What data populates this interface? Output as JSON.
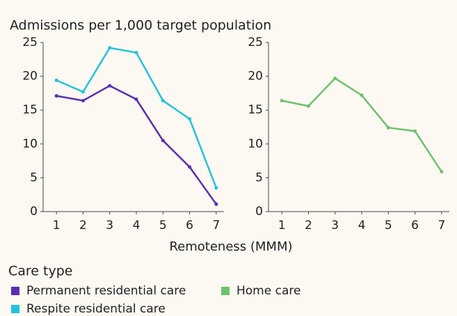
{
  "title": "Admissions per 1,000 target population",
  "xlabel": "Remoteness (MMM)",
  "legend_title": "Care type",
  "chart_data": [
    {
      "type": "line",
      "x": [
        1,
        2,
        3,
        4,
        5,
        6,
        7
      ],
      "xlim": [
        0.5,
        7.5
      ],
      "xticks": [
        1,
        2,
        3,
        4,
        5,
        6,
        7
      ],
      "ylim": [
        0,
        25
      ],
      "yticks": [
        0,
        5,
        10,
        15,
        20,
        25
      ],
      "series": [
        {
          "name": "Permanent residential care",
          "color": "#5a2db4",
          "values": [
            17.1,
            16.4,
            18.6,
            16.6,
            10.5,
            6.6,
            1.1
          ]
        },
        {
          "name": "Respite residential care",
          "color": "#22c3dc",
          "values": [
            19.4,
            17.7,
            24.2,
            23.5,
            16.4,
            13.7,
            3.5
          ]
        }
      ]
    },
    {
      "type": "line",
      "x": [
        1,
        2,
        3,
        4,
        5,
        6,
        7
      ],
      "xlim": [
        0.5,
        7.5
      ],
      "xticks": [
        1,
        2,
        3,
        4,
        5,
        6,
        7
      ],
      "ylim": [
        0,
        25
      ],
      "yticks": [
        0,
        5,
        10,
        15,
        20,
        25
      ],
      "series": [
        {
          "name": "Home care",
          "color": "#6cc26c",
          "values": [
            16.4,
            15.6,
            19.7,
            17.2,
            12.4,
            11.9,
            5.9
          ]
        }
      ]
    }
  ]
}
